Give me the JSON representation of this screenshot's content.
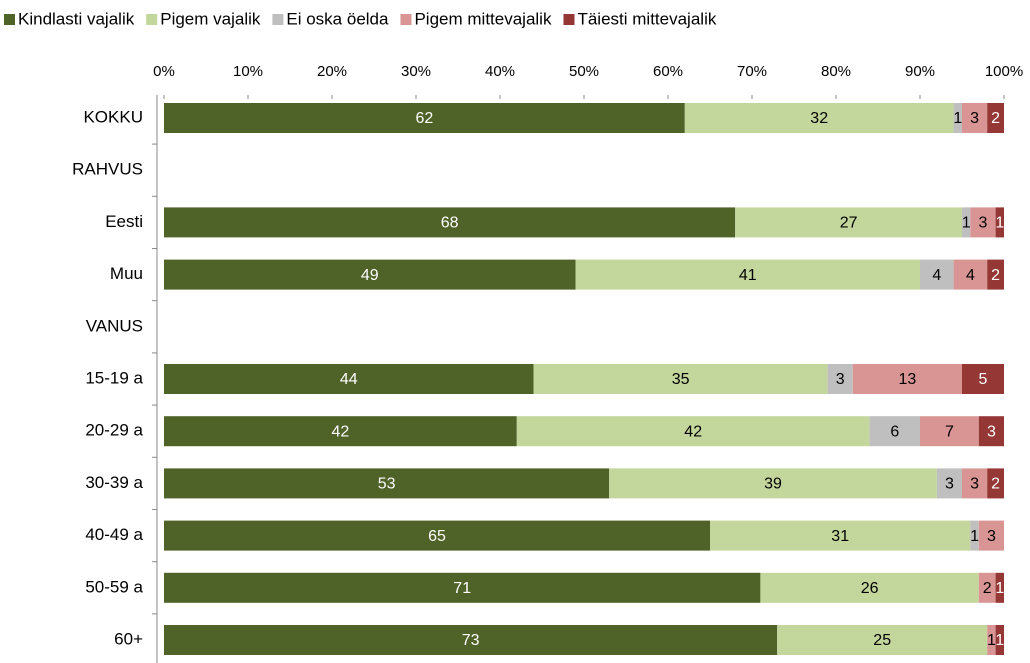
{
  "chart_data": {
    "type": "stacked-barh",
    "categories": [
      "KOKKU",
      "RAHVUS",
      "Eesti",
      "Muu",
      "VANUS",
      "15-19 a",
      "20-29 a",
      "30-39 a",
      "40-49 a",
      "50-59 a",
      "60+"
    ],
    "series": [
      {
        "name": "Kindlasti vajalik",
        "color": "#4f6228",
        "values": [
          62,
          null,
          68,
          49,
          null,
          44,
          42,
          53,
          65,
          71,
          73
        ]
      },
      {
        "name": "Pigem vajalik",
        "color": "#c3d69b",
        "values": [
          32,
          null,
          27,
          41,
          null,
          35,
          42,
          39,
          31,
          26,
          25
        ]
      },
      {
        "name": "Ei oska öelda",
        "color": "#bfbfbf",
        "values": [
          1,
          null,
          1,
          4,
          null,
          3,
          6,
          3,
          1,
          null,
          null
        ]
      },
      {
        "name": "Pigem mittevajalik",
        "color": "#d99594",
        "values": [
          3,
          null,
          3,
          4,
          null,
          13,
          7,
          3,
          3,
          2,
          1
        ]
      },
      {
        "name": "Täiesti mittevajalik",
        "color": "#953735",
        "values": [
          2,
          null,
          1,
          2,
          null,
          5,
          3,
          2,
          null,
          1,
          1
        ]
      }
    ],
    "xlim": [
      0,
      100
    ],
    "xticks": [
      {
        "value": 0,
        "label": "0%"
      },
      {
        "value": 10,
        "label": "10%"
      },
      {
        "value": 20,
        "label": "20%"
      },
      {
        "value": 30,
        "label": "30%"
      },
      {
        "value": 40,
        "label": "40%"
      },
      {
        "value": 50,
        "label": "50%"
      },
      {
        "value": 60,
        "label": "60%"
      },
      {
        "value": 70,
        "label": "70%"
      },
      {
        "value": 80,
        "label": "80%"
      },
      {
        "value": 90,
        "label": "90%"
      },
      {
        "value": 100,
        "label": "100%"
      }
    ],
    "legend": "top"
  }
}
